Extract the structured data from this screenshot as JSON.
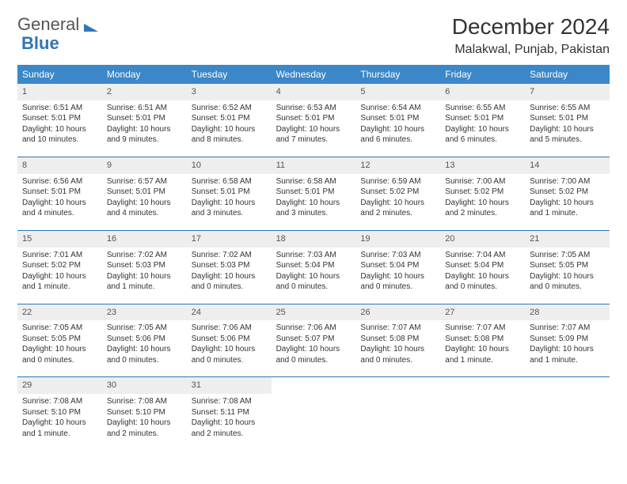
{
  "brand": {
    "part1": "General",
    "part2": "Blue"
  },
  "title": "December 2024",
  "location": "Malakwal, Punjab, Pakistan",
  "colors": {
    "header_bg": "#3b87c8",
    "header_text": "#ffffff",
    "accent": "#2e76b6",
    "daynum_bg": "#eeeeee",
    "text": "#333333",
    "background": "#ffffff"
  },
  "day_labels": [
    "Sunday",
    "Monday",
    "Tuesday",
    "Wednesday",
    "Thursday",
    "Friday",
    "Saturday"
  ],
  "weeks": [
    [
      {
        "n": "1",
        "sr": "6:51 AM",
        "ss": "5:01 PM",
        "dl": "10 hours and 10 minutes."
      },
      {
        "n": "2",
        "sr": "6:51 AM",
        "ss": "5:01 PM",
        "dl": "10 hours and 9 minutes."
      },
      {
        "n": "3",
        "sr": "6:52 AM",
        "ss": "5:01 PM",
        "dl": "10 hours and 8 minutes."
      },
      {
        "n": "4",
        "sr": "6:53 AM",
        "ss": "5:01 PM",
        "dl": "10 hours and 7 minutes."
      },
      {
        "n": "5",
        "sr": "6:54 AM",
        "ss": "5:01 PM",
        "dl": "10 hours and 6 minutes."
      },
      {
        "n": "6",
        "sr": "6:55 AM",
        "ss": "5:01 PM",
        "dl": "10 hours and 6 minutes."
      },
      {
        "n": "7",
        "sr": "6:55 AM",
        "ss": "5:01 PM",
        "dl": "10 hours and 5 minutes."
      }
    ],
    [
      {
        "n": "8",
        "sr": "6:56 AM",
        "ss": "5:01 PM",
        "dl": "10 hours and 4 minutes."
      },
      {
        "n": "9",
        "sr": "6:57 AM",
        "ss": "5:01 PM",
        "dl": "10 hours and 4 minutes."
      },
      {
        "n": "10",
        "sr": "6:58 AM",
        "ss": "5:01 PM",
        "dl": "10 hours and 3 minutes."
      },
      {
        "n": "11",
        "sr": "6:58 AM",
        "ss": "5:01 PM",
        "dl": "10 hours and 3 minutes."
      },
      {
        "n": "12",
        "sr": "6:59 AM",
        "ss": "5:02 PM",
        "dl": "10 hours and 2 minutes."
      },
      {
        "n": "13",
        "sr": "7:00 AM",
        "ss": "5:02 PM",
        "dl": "10 hours and 2 minutes."
      },
      {
        "n": "14",
        "sr": "7:00 AM",
        "ss": "5:02 PM",
        "dl": "10 hours and 1 minute."
      }
    ],
    [
      {
        "n": "15",
        "sr": "7:01 AM",
        "ss": "5:02 PM",
        "dl": "10 hours and 1 minute."
      },
      {
        "n": "16",
        "sr": "7:02 AM",
        "ss": "5:03 PM",
        "dl": "10 hours and 1 minute."
      },
      {
        "n": "17",
        "sr": "7:02 AM",
        "ss": "5:03 PM",
        "dl": "10 hours and 0 minutes."
      },
      {
        "n": "18",
        "sr": "7:03 AM",
        "ss": "5:04 PM",
        "dl": "10 hours and 0 minutes."
      },
      {
        "n": "19",
        "sr": "7:03 AM",
        "ss": "5:04 PM",
        "dl": "10 hours and 0 minutes."
      },
      {
        "n": "20",
        "sr": "7:04 AM",
        "ss": "5:04 PM",
        "dl": "10 hours and 0 minutes."
      },
      {
        "n": "21",
        "sr": "7:05 AM",
        "ss": "5:05 PM",
        "dl": "10 hours and 0 minutes."
      }
    ],
    [
      {
        "n": "22",
        "sr": "7:05 AM",
        "ss": "5:05 PM",
        "dl": "10 hours and 0 minutes."
      },
      {
        "n": "23",
        "sr": "7:05 AM",
        "ss": "5:06 PM",
        "dl": "10 hours and 0 minutes."
      },
      {
        "n": "24",
        "sr": "7:06 AM",
        "ss": "5:06 PM",
        "dl": "10 hours and 0 minutes."
      },
      {
        "n": "25",
        "sr": "7:06 AM",
        "ss": "5:07 PM",
        "dl": "10 hours and 0 minutes."
      },
      {
        "n": "26",
        "sr": "7:07 AM",
        "ss": "5:08 PM",
        "dl": "10 hours and 0 minutes."
      },
      {
        "n": "27",
        "sr": "7:07 AM",
        "ss": "5:08 PM",
        "dl": "10 hours and 1 minute."
      },
      {
        "n": "28",
        "sr": "7:07 AM",
        "ss": "5:09 PM",
        "dl": "10 hours and 1 minute."
      }
    ],
    [
      {
        "n": "29",
        "sr": "7:08 AM",
        "ss": "5:10 PM",
        "dl": "10 hours and 1 minute."
      },
      {
        "n": "30",
        "sr": "7:08 AM",
        "ss": "5:10 PM",
        "dl": "10 hours and 2 minutes."
      },
      {
        "n": "31",
        "sr": "7:08 AM",
        "ss": "5:11 PM",
        "dl": "10 hours and 2 minutes."
      },
      null,
      null,
      null,
      null
    ]
  ],
  "labels": {
    "sunrise": "Sunrise: ",
    "sunset": "Sunset: ",
    "daylight": "Daylight: "
  }
}
